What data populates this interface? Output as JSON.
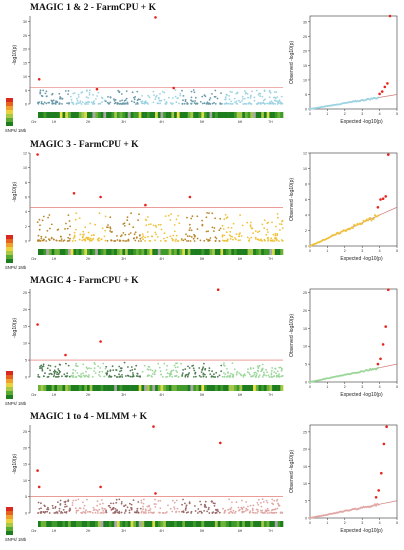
{
  "panels": [
    {
      "title": "MAGIC 1 & 2 - FarmCPU + K",
      "color": "#9dd3e2",
      "dark_color": "#6a9aaa",
      "manhattan": {
        "ylabel": "-log10(p)",
        "ylim": [
          0,
          32
        ],
        "yticks": [
          0,
          5,
          10,
          15,
          20,
          25,
          30
        ],
        "threshold": 6,
        "chromosomes": [
          "Chr",
          "1H",
          "2H",
          "3H",
          "4H",
          "5H",
          "6H",
          "7H"
        ],
        "significant": [
          {
            "chr": "1H",
            "pos": 0.05,
            "y": 9.0
          },
          {
            "chr": "2H",
            "pos": 0.75,
            "y": 5.4
          },
          {
            "chr": "4H",
            "pos": 0.35,
            "y": 31.5
          },
          {
            "chr": "4H",
            "pos": 0.8,
            "y": 5.8
          }
        ],
        "density_label": "SNPs/ 1Mb"
      },
      "qq": {
        "xlabel": "Expected -log10(p)",
        "ylabel": "Observed -log10(p)",
        "xlim": [
          0,
          5
        ],
        "ylim": [
          0,
          32
        ],
        "xticks": [
          0,
          1,
          2,
          3,
          4,
          5
        ],
        "yticks": [
          0,
          5,
          10,
          15,
          20,
          25,
          30
        ],
        "top_points": [
          [
            4.0,
            5.2
          ],
          [
            4.15,
            6.0
          ],
          [
            4.3,
            7.6
          ],
          [
            4.45,
            8.8
          ],
          [
            4.6,
            32.0
          ]
        ]
      }
    },
    {
      "title": "MAGIC 3 - FarmCPU + K",
      "color": "#f0c23a",
      "dark_color": "#b8862a",
      "manhattan": {
        "ylabel": "-log10(p)",
        "ylim": [
          0,
          12
        ],
        "yticks": [
          0,
          2,
          4,
          6,
          8,
          10,
          12
        ],
        "threshold": 4.6,
        "chromosomes": [
          "Chr",
          "1H",
          "2H",
          "3H",
          "4H",
          "5H",
          "6H",
          "7H"
        ],
        "significant": [
          {
            "chr": "1H",
            "pos": 0.0,
            "y": 11.8
          },
          {
            "chr": "2H",
            "pos": 0.1,
            "y": 6.5
          },
          {
            "chr": "2H",
            "pos": 0.85,
            "y": 6.0
          },
          {
            "chr": "4H",
            "pos": 0.1,
            "y": 4.9
          },
          {
            "chr": "5H",
            "pos": 0.2,
            "y": 6.0
          }
        ],
        "density_label": "SNPs/ 1Mb"
      },
      "qq": {
        "xlabel": "Expected -log10(p)",
        "ylabel": "Observed -log10(p)",
        "xlim": [
          0,
          5
        ],
        "ylim": [
          0,
          12
        ],
        "xticks": [
          0,
          1,
          2,
          3,
          4,
          5
        ],
        "yticks": [
          0,
          2,
          4,
          6,
          8,
          10,
          12
        ],
        "top_points": [
          [
            3.9,
            5.0
          ],
          [
            4.05,
            6.0
          ],
          [
            4.2,
            6.1
          ],
          [
            4.35,
            6.4
          ],
          [
            4.5,
            11.8
          ]
        ]
      }
    },
    {
      "title": "MAGIC 4 - FarmCPU + K",
      "color": "#9cd79a",
      "dark_color": "#4f7d52",
      "manhattan": {
        "ylabel": "-log10(p)",
        "ylim": [
          0,
          26
        ],
        "yticks": [
          0,
          5,
          10,
          15,
          20,
          25
        ],
        "threshold": 5,
        "chromosomes": [
          "Chr",
          "1H",
          "2H",
          "3H",
          "4H",
          "5H",
          "6H",
          "7H"
        ],
        "significant": [
          {
            "chr": "1H",
            "pos": 0.0,
            "y": 15.5
          },
          {
            "chr": "1H",
            "pos": 0.85,
            "y": 6.5
          },
          {
            "chr": "2H",
            "pos": 0.85,
            "y": 10.5
          },
          {
            "chr": "5H",
            "pos": 0.9,
            "y": 25.8
          }
        ],
        "density_label": "SNPs/ 1Mb"
      },
      "qq": {
        "xlabel": "Expected -log10(p)",
        "ylabel": "Observed -log10(p)",
        "xlim": [
          0,
          5
        ],
        "ylim": [
          0,
          26
        ],
        "xticks": [
          0,
          1,
          2,
          3,
          4,
          5
        ],
        "yticks": [
          0,
          5,
          10,
          15,
          20,
          25
        ],
        "top_points": [
          [
            3.9,
            5.0
          ],
          [
            4.05,
            6.5
          ],
          [
            4.2,
            10.5
          ],
          [
            4.35,
            15.5
          ],
          [
            4.5,
            25.8
          ]
        ]
      }
    },
    {
      "title": "MAGIC 1 to 4 - MLMM + K",
      "color": "#e0a8a5",
      "dark_color": "#9a6a68",
      "manhattan": {
        "ylabel": "-log10(p)",
        "ylim": [
          0,
          27
        ],
        "yticks": [
          0,
          5,
          10,
          15,
          20,
          25
        ],
        "threshold": 5,
        "chromosomes": [
          "Chr",
          "1H",
          "2H",
          "3H",
          "4H",
          "5H",
          "6H",
          "7H"
        ],
        "significant": [
          {
            "chr": "1H",
            "pos": 0.0,
            "y": 13.0
          },
          {
            "chr": "1H",
            "pos": 0.05,
            "y": 8.0
          },
          {
            "chr": "2H",
            "pos": 0.85,
            "y": 8.0
          },
          {
            "chr": "4H",
            "pos": 0.3,
            "y": 26.5
          },
          {
            "chr": "4H",
            "pos": 0.35,
            "y": 6.0
          },
          {
            "chr": "5H",
            "pos": 0.95,
            "y": 21.5
          }
        ],
        "density_label": "SNPs/ 1Mb"
      },
      "qq": {
        "xlabel": "Expected -log10(p)",
        "ylabel": "Observed -log10(p)",
        "xlim": [
          0,
          5
        ],
        "ylim": [
          0,
          27
        ],
        "xticks": [
          0,
          1,
          2,
          3,
          4,
          5
        ],
        "yticks": [
          0,
          5,
          10,
          15,
          20,
          25
        ],
        "top_points": [
          [
            3.8,
            6.0
          ],
          [
            3.95,
            8.0
          ],
          [
            4.1,
            13.0
          ],
          [
            4.25,
            21.5
          ],
          [
            4.4,
            26.5
          ]
        ]
      }
    }
  ],
  "chart_data": [
    {
      "type": "scatter",
      "title": "MAGIC 1 & 2 - FarmCPU + K",
      "subtype": "manhattan",
      "ylabel": "-log10(p)",
      "ylim": [
        0,
        32
      ],
      "threshold": 6,
      "categories": [
        "1H",
        "2H",
        "3H",
        "4H",
        "5H",
        "6H",
        "7H"
      ],
      "significant_y": [
        9.0,
        5.4,
        31.5,
        5.8
      ]
    },
    {
      "type": "scatter",
      "title": "MAGIC 1 & 2 - FarmCPU + K",
      "subtype": "qq",
      "xlabel": "Expected -log10(p)",
      "ylabel": "Observed -log10(p)",
      "xlim": [
        0,
        5
      ],
      "ylim": [
        0,
        32
      ]
    },
    {
      "type": "scatter",
      "title": "MAGIC 3 - FarmCPU + K",
      "subtype": "manhattan",
      "ylabel": "-log10(p)",
      "ylim": [
        0,
        12
      ],
      "threshold": 4.6,
      "categories": [
        "1H",
        "2H",
        "3H",
        "4H",
        "5H",
        "6H",
        "7H"
      ],
      "significant_y": [
        11.8,
        6.5,
        6.0,
        4.9,
        6.0
      ]
    },
    {
      "type": "scatter",
      "title": "MAGIC 3 - FarmCPU + K",
      "subtype": "qq",
      "xlabel": "Expected -log10(p)",
      "ylabel": "Observed -log10(p)",
      "xlim": [
        0,
        5
      ],
      "ylim": [
        0,
        12
      ]
    },
    {
      "type": "scatter",
      "title": "MAGIC 4 - FarmCPU + K",
      "subtype": "manhattan",
      "ylabel": "-log10(p)",
      "ylim": [
        0,
        26
      ],
      "threshold": 5,
      "categories": [
        "1H",
        "2H",
        "3H",
        "4H",
        "5H",
        "6H",
        "7H"
      ],
      "significant_y": [
        15.5,
        6.5,
        10.5,
        25.8
      ]
    },
    {
      "type": "scatter",
      "title": "MAGIC 4 - FarmCPU + K",
      "subtype": "qq",
      "xlabel": "Expected -log10(p)",
      "ylabel": "Observed -log10(p)",
      "xlim": [
        0,
        5
      ],
      "ylim": [
        0,
        26
      ]
    },
    {
      "type": "scatter",
      "title": "MAGIC 1 to 4 - MLMM + K",
      "subtype": "manhattan",
      "ylabel": "-log10(p)",
      "ylim": [
        0,
        27
      ],
      "threshold": 5,
      "categories": [
        "1H",
        "2H",
        "3H",
        "4H",
        "5H",
        "6H",
        "7H"
      ],
      "significant_y": [
        13.0,
        8.0,
        8.0,
        26.5,
        6.0,
        21.5
      ]
    },
    {
      "type": "scatter",
      "title": "MAGIC 1 to 4 - MLMM + K",
      "subtype": "qq",
      "xlabel": "Expected -log10(p)",
      "ylabel": "Observed -log10(p)",
      "xlim": [
        0,
        5
      ],
      "ylim": [
        0,
        27
      ]
    }
  ]
}
